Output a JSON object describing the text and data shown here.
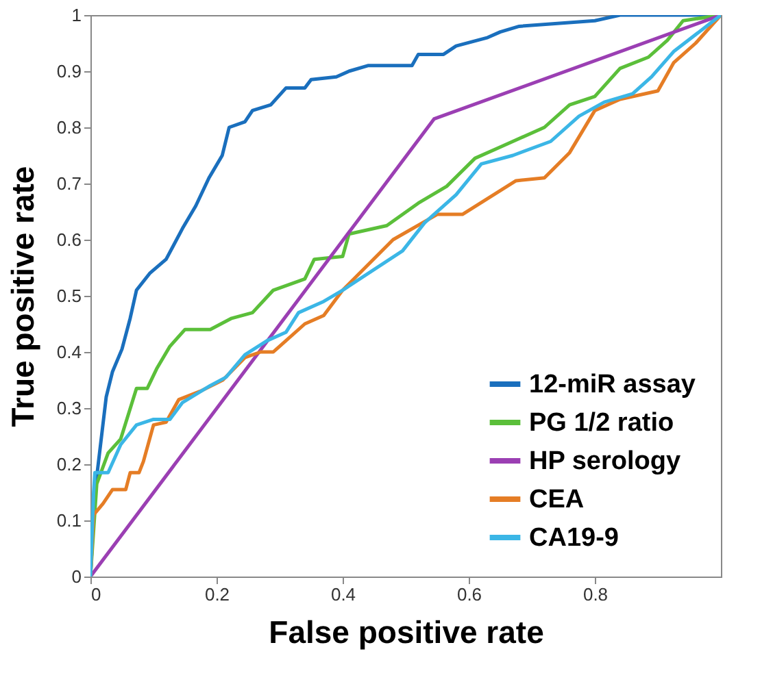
{
  "chart_data": {
    "type": "line",
    "xlabel": "False positive rate",
    "ylabel": "True positive rate",
    "xlim": [
      0,
      1
    ],
    "ylim": [
      0,
      1
    ],
    "xticks": [
      0,
      0.2,
      0.4,
      0.6,
      0.8
    ],
    "yticks": [
      0,
      0.1,
      0.2,
      0.3,
      0.4,
      0.5,
      0.6,
      0.7,
      0.8,
      0.9,
      1
    ],
    "grid": false,
    "legend": "bottom right",
    "marker": "none",
    "line_style": "solid",
    "series": [
      {
        "name": "12-miR assay",
        "color": "#1a6fbd",
        "x": [
          0,
          0.007,
          0.025,
          0.035,
          0.05,
          0.063,
          0.073,
          0.094,
          0.12,
          0.146,
          0.167,
          0.188,
          0.209,
          0.22,
          0.245,
          0.257,
          0.286,
          0.31,
          0.34,
          0.35,
          0.39,
          0.41,
          0.44,
          0.51,
          0.52,
          0.56,
          0.58,
          0.63,
          0.65,
          0.68,
          0.8,
          0.84,
          1
        ],
        "values": [
          0,
          0.15,
          0.32,
          0.365,
          0.405,
          0.46,
          0.51,
          0.54,
          0.565,
          0.62,
          0.66,
          0.71,
          0.75,
          0.8,
          0.81,
          0.83,
          0.84,
          0.87,
          0.87,
          0.885,
          0.89,
          0.9,
          0.91,
          0.91,
          0.93,
          0.93,
          0.945,
          0.96,
          0.97,
          0.98,
          0.99,
          1,
          1
        ]
      },
      {
        "name": "PG 1/2 ratio",
        "color": "#5bbf3a",
        "x": [
          0,
          0.01,
          0.028,
          0.048,
          0.073,
          0.09,
          0.105,
          0.126,
          0.15,
          0.19,
          0.224,
          0.257,
          0.29,
          0.34,
          0.355,
          0.4,
          0.41,
          0.47,
          0.52,
          0.565,
          0.61,
          0.65,
          0.72,
          0.76,
          0.8,
          0.84,
          0.885,
          0.915,
          0.94,
          1
        ],
        "values": [
          0,
          0.165,
          0.22,
          0.245,
          0.335,
          0.335,
          0.37,
          0.41,
          0.44,
          0.44,
          0.46,
          0.47,
          0.51,
          0.53,
          0.565,
          0.57,
          0.61,
          0.625,
          0.665,
          0.695,
          0.745,
          0.765,
          0.8,
          0.84,
          0.855,
          0.905,
          0.925,
          0.955,
          0.99,
          1
        ]
      },
      {
        "name": "HP serology",
        "color": "#9b3fb3",
        "x": [
          0,
          0.545,
          1
        ],
        "values": [
          0,
          0.815,
          1
        ]
      },
      {
        "name": "CEA",
        "color": "#e57d25",
        "x": [
          0,
          0.005,
          0.02,
          0.035,
          0.056,
          0.063,
          0.077,
          0.084,
          0.1,
          0.12,
          0.14,
          0.174,
          0.21,
          0.245,
          0.27,
          0.29,
          0.34,
          0.37,
          0.4,
          0.48,
          0.55,
          0.59,
          0.675,
          0.72,
          0.76,
          0.8,
          0.84,
          0.9,
          0.925,
          0.96,
          1
        ],
        "values": [
          0,
          0.11,
          0.13,
          0.155,
          0.155,
          0.185,
          0.185,
          0.205,
          0.27,
          0.275,
          0.315,
          0.33,
          0.35,
          0.39,
          0.4,
          0.4,
          0.45,
          0.465,
          0.51,
          0.6,
          0.645,
          0.645,
          0.705,
          0.71,
          0.755,
          0.83,
          0.85,
          0.865,
          0.915,
          0.95,
          1
        ]
      },
      {
        "name": "CA19-9",
        "color": "#3bb6e6",
        "x": [
          0,
          0.005,
          0.007,
          0.028,
          0.048,
          0.073,
          0.1,
          0.126,
          0.146,
          0.19,
          0.215,
          0.245,
          0.28,
          0.31,
          0.33,
          0.37,
          0.4,
          0.495,
          0.53,
          0.58,
          0.62,
          0.67,
          0.73,
          0.775,
          0.815,
          0.86,
          0.89,
          0.925,
          1
        ],
        "values": [
          0,
          0.15,
          0.185,
          0.185,
          0.235,
          0.27,
          0.28,
          0.28,
          0.31,
          0.34,
          0.355,
          0.395,
          0.42,
          0.435,
          0.47,
          0.49,
          0.51,
          0.58,
          0.63,
          0.68,
          0.735,
          0.75,
          0.775,
          0.82,
          0.845,
          0.86,
          0.89,
          0.935,
          1
        ]
      }
    ]
  }
}
